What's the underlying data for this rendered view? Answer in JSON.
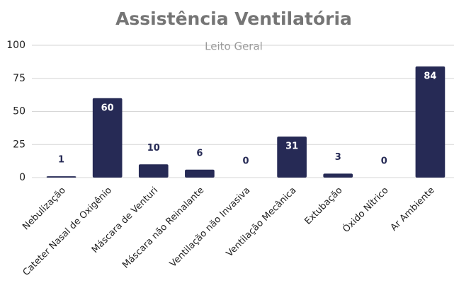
{
  "chart_data": {
    "type": "bar",
    "title": "Assistência Ventilatória",
    "subtitle": "Leito Geral",
    "categories": [
      "Nebulização",
      "Cateter Nasal de Oxigênio",
      "Máscara de Venturi",
      "Máscara não Reinalante",
      "Ventilação não Invasiva",
      "Ventilação Mecânica",
      "Extubação",
      "Óxido Nítrico",
      "Ar Ambiente"
    ],
    "values": [
      1,
      60,
      10,
      6,
      0,
      31,
      3,
      0,
      84
    ],
    "color": "#262a55",
    "ylim": [
      0,
      100
    ],
    "yticks": [
      0,
      25,
      50,
      75,
      100
    ],
    "grid": true
  }
}
